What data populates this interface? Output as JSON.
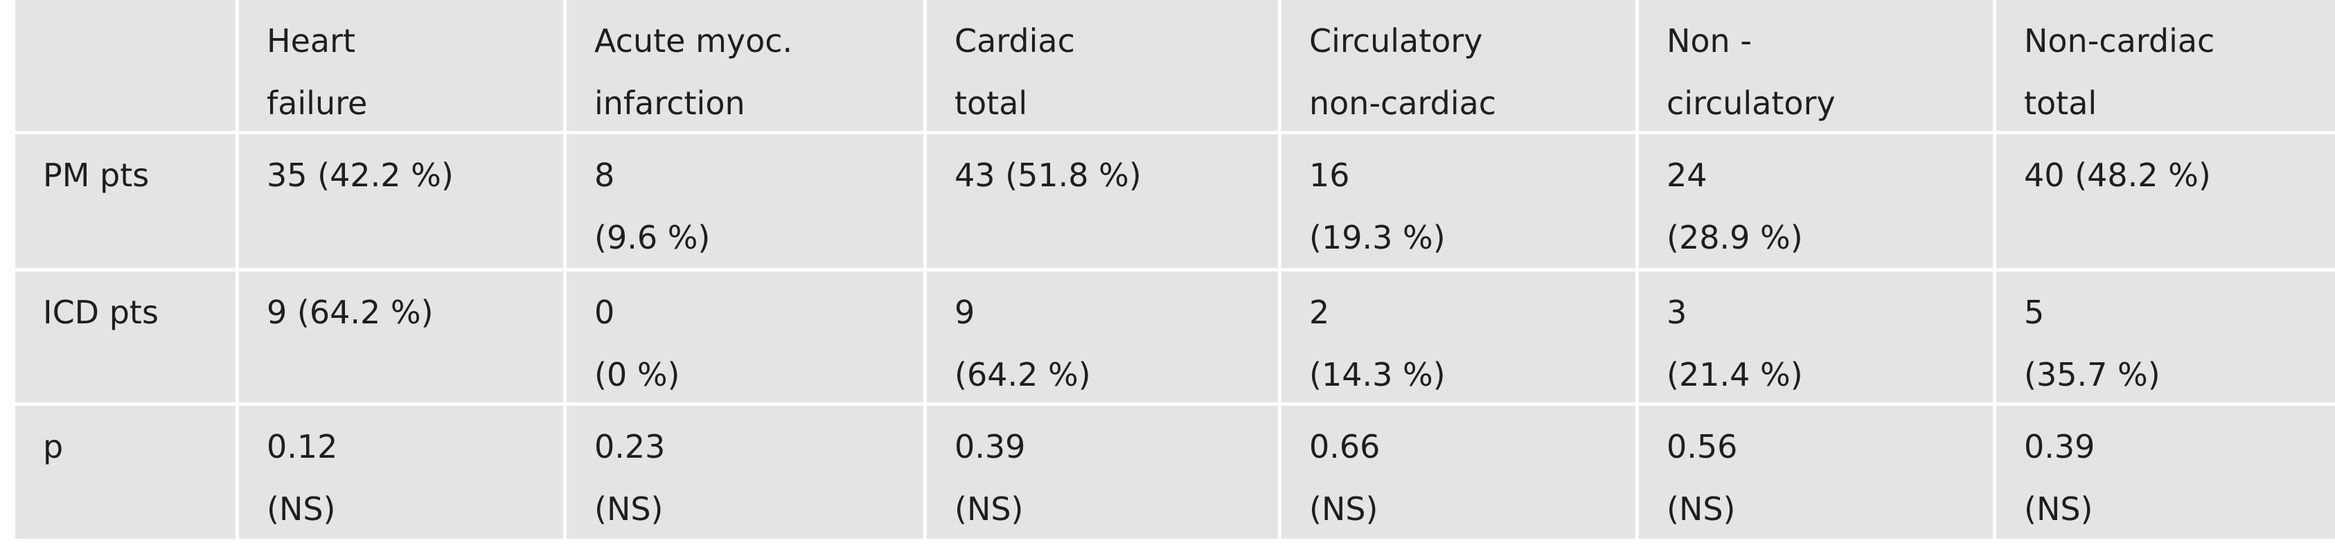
{
  "table": {
    "columns": [
      [
        "Heart",
        "failure"
      ],
      [
        "Acute myoc.",
        "infarction"
      ],
      [
        "Cardiac",
        "total"
      ],
      [
        "Circulatory",
        "non-cardiac"
      ],
      [
        "Non -",
        "circulatory"
      ],
      [
        "Non-cardiac",
        "total"
      ]
    ],
    "rows": [
      {
        "label": "PM pts",
        "cells": [
          [
            "35 (42.2 %)"
          ],
          [
            "8",
            "(9.6 %)"
          ],
          [
            "43 (51.8 %)"
          ],
          [
            "16",
            "(19.3 %)"
          ],
          [
            "24",
            "(28.9 %)"
          ],
          [
            "40 (48.2 %)"
          ]
        ]
      },
      {
        "label": "ICD pts",
        "cells": [
          [
            "9 (64.2 %)"
          ],
          [
            "0",
            "(0 %)"
          ],
          [
            "9",
            "(64.2 %)"
          ],
          [
            "2",
            "(14.3 %)"
          ],
          [
            "3",
            "(21.4 %)"
          ],
          [
            "5",
            "(35.7 %)"
          ]
        ]
      },
      {
        "label": "p",
        "cells": [
          [
            "0.12",
            "(NS)"
          ],
          [
            "0.23",
            "(NS)"
          ],
          [
            "0.39",
            "(NS)"
          ],
          [
            "0.66",
            "(NS)"
          ],
          [
            "0.56",
            "(NS)"
          ],
          [
            "0.39",
            "(NS)"
          ]
        ]
      }
    ]
  }
}
